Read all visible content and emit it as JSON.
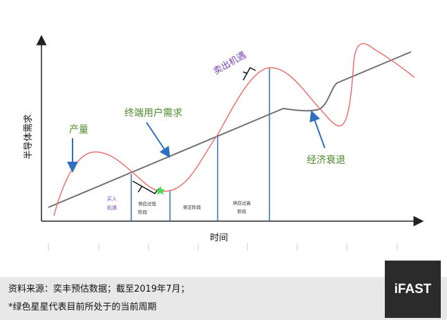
{
  "labels": {
    "y_axis": "半导体需求",
    "x_axis": "时间",
    "production": "产量",
    "end_demand": "终端用户需求",
    "sell": "卖出机遇",
    "recession": "经济衰退",
    "buy_1": "买入",
    "buy_2": "机遇",
    "under_1": "供应过低",
    "under_2": "阶段",
    "correct": "修正阶段",
    "over_1": "供应过高",
    "over_2": "阶段"
  },
  "footer": {
    "source": "资料来源：奕丰预估数据；截至2019年7月；",
    "note": "*绿色星星代表目前所处于的当前周期"
  },
  "logo": "iFAST",
  "colors": {
    "supply": "#e8706f",
    "demand": "#707070",
    "phase_lines": "#2e6fbf",
    "green_label": "#4e8a2a",
    "purple_label": "#7b3fb5",
    "star": "#3ddc4a"
  }
}
